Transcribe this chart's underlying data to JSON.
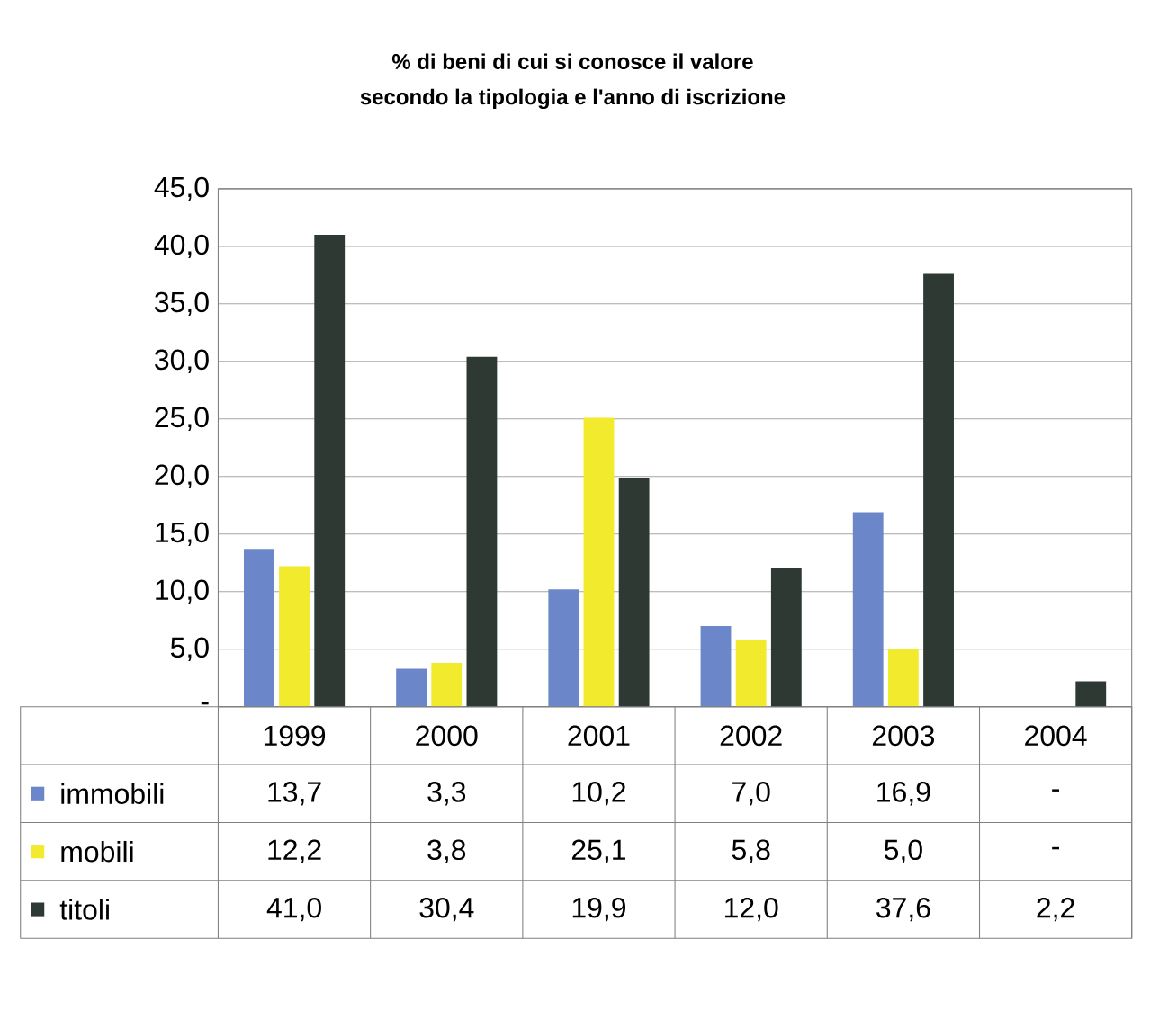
{
  "chart_data": {
    "type": "bar",
    "title": "% di beni di cui si conosce il valore",
    "subtitle": "secondo la tipologia e l'anno di iscrizione",
    "categories": [
      "1999",
      "2000",
      "2001",
      "2002",
      "2003",
      "2004"
    ],
    "series": [
      {
        "name": "immobili",
        "color": "#6b86c9",
        "values": [
          13.7,
          3.3,
          10.2,
          7.0,
          16.9,
          null
        ],
        "value_labels": [
          "13,7",
          "3,3",
          "10,2",
          "7,0",
          "16,9",
          "-"
        ]
      },
      {
        "name": "mobili",
        "color": "#f2ea2c",
        "values": [
          12.2,
          3.8,
          25.1,
          5.8,
          5.0,
          null
        ],
        "value_labels": [
          "12,2",
          "3,8",
          "25,1",
          "5,8",
          "5,0",
          "-"
        ]
      },
      {
        "name": "titoli",
        "color": "#2e3934",
        "values": [
          41.0,
          30.4,
          19.9,
          12.0,
          37.6,
          2.2
        ],
        "value_labels": [
          "41,0",
          "30,4",
          "19,9",
          "12,0",
          "37,6",
          "2,2"
        ]
      }
    ],
    "ylim": [
      0,
      45
    ],
    "yticks": [
      {
        "value": 0,
        "label": "-"
      },
      {
        "value": 5,
        "label": "5,0"
      },
      {
        "value": 10,
        "label": "10,0"
      },
      {
        "value": 15,
        "label": "15,0"
      },
      {
        "value": 20,
        "label": "20,0"
      },
      {
        "value": 25,
        "label": "25,0"
      },
      {
        "value": 30,
        "label": "30,0"
      },
      {
        "value": 35,
        "label": "35,0"
      },
      {
        "value": 40,
        "label": "40,0"
      },
      {
        "value": 45,
        "label": "45,0"
      }
    ],
    "grid": "y",
    "legend": "bottom"
  }
}
